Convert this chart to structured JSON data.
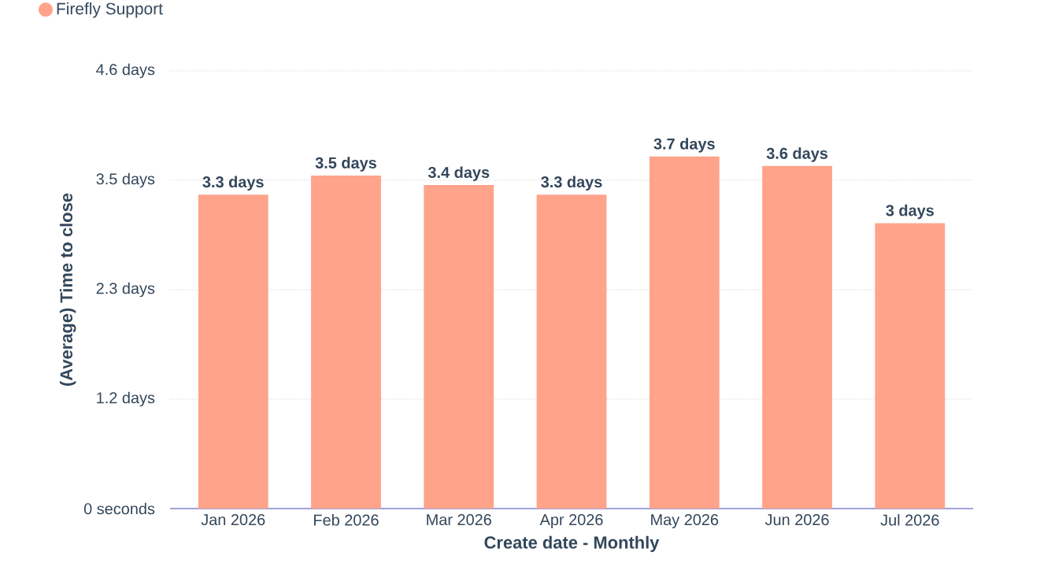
{
  "chart_data": {
    "type": "bar",
    "categories": [
      "Jan 2026",
      "Feb 2026",
      "Mar 2026",
      "Apr 2026",
      "May 2026",
      "Jun 2026",
      "Jul 2026"
    ],
    "series": [
      {
        "name": "Firefly Support",
        "color": "#ffa38b",
        "values": [
          3.3,
          3.5,
          3.4,
          3.3,
          3.7,
          3.6,
          3.0
        ],
        "value_labels": [
          "3.3 days",
          "3.5 days",
          "3.4 days",
          "3.3 days",
          "3.7 days",
          "3.6 days",
          "3 days"
        ]
      }
    ],
    "xlabel": "Create date - Monthly",
    "ylabel": "(Average) Time to close",
    "ylim": [
      0,
      4.6
    ],
    "yticks": [
      {
        "value": 0,
        "label": "0 seconds"
      },
      {
        "value": 1.15,
        "label": "1.2 days"
      },
      {
        "value": 2.3,
        "label": "2.3 days"
      },
      {
        "value": 3.45,
        "label": "3.5 days"
      },
      {
        "value": 4.6,
        "label": "4.6 days"
      }
    ],
    "grid": "y",
    "legend": "top left"
  }
}
